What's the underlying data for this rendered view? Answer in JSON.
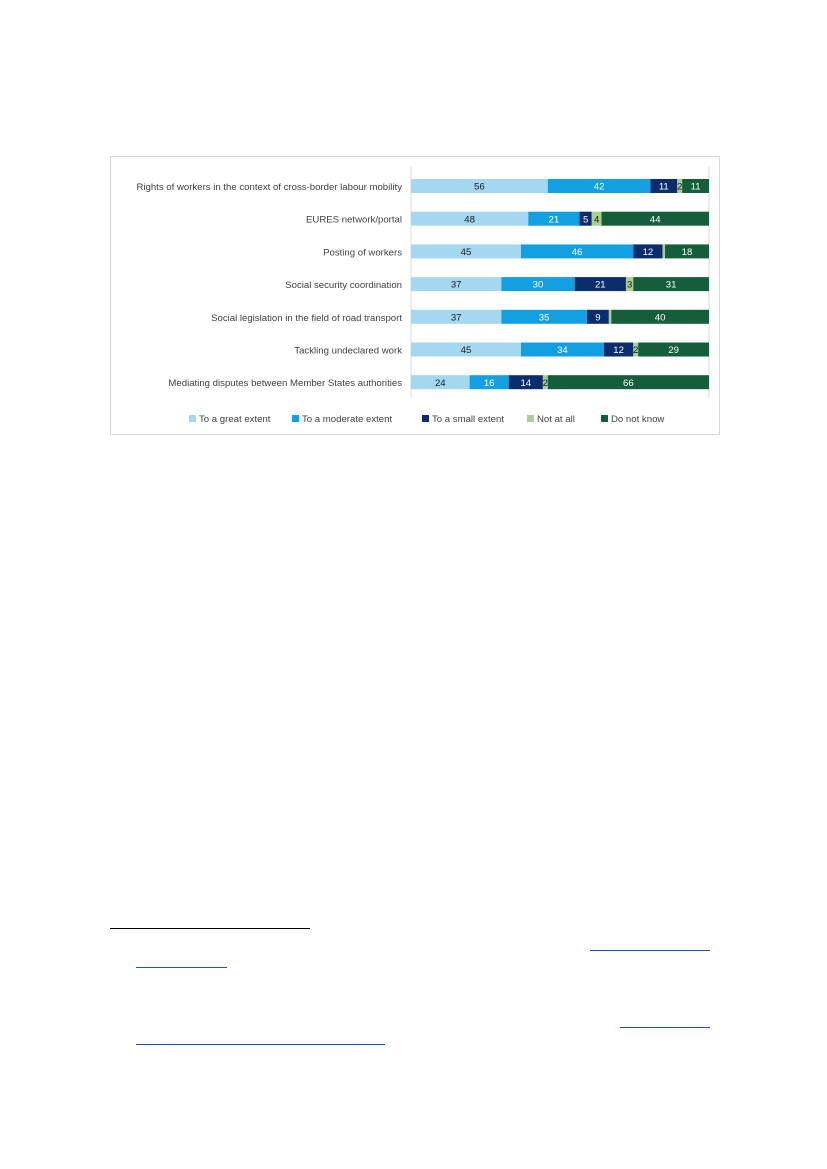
{
  "chart_data": {
    "type": "bar",
    "orientation": "horizontal",
    "stacked": true,
    "categories": [
      "Rights of workers in the context of cross-border labour mobility",
      "EURES network/portal",
      "Posting of workers",
      "Social security coordination",
      "Social legislation in the field of road transport",
      "Tackling undeclared work",
      "Mediating disputes between Member States authorities"
    ],
    "series": [
      {
        "name": "To a great extent",
        "color": "#a3d8f0",
        "label_color": "#1a1a1a",
        "values": [
          56,
          48,
          45,
          37,
          37,
          45,
          24
        ],
        "labels": [
          "56",
          "48",
          "45",
          "37",
          "37",
          "45",
          "24"
        ]
      },
      {
        "name": "To a moderate extent",
        "color": "#13a0e2",
        "label_color": "#ffffff",
        "values": [
          42,
          21,
          46,
          30,
          35,
          34,
          16
        ],
        "labels": [
          "42",
          "21",
          "46",
          "30",
          "35",
          "34",
          "16"
        ]
      },
      {
        "name": "To a small extent",
        "color": "#0c2d6b",
        "label_color": "#ffffff",
        "values": [
          11,
          5,
          12,
          21,
          9,
          12,
          14
        ],
        "labels": [
          "11",
          "5",
          "12",
          "21",
          "9",
          "12",
          "14"
        ]
      },
      {
        "name": "Not at all",
        "color": "#a9d08e",
        "label_color": "#1a1a1a",
        "values": [
          2,
          4,
          1,
          3,
          1,
          2,
          2
        ],
        "labels": [
          "2",
          "4",
          "",
          "3",
          "",
          "2",
          "2"
        ]
      },
      {
        "name": "Do not know",
        "color": "#155e3c",
        "label_color": "#ffffff",
        "values": [
          11,
          44,
          18,
          31,
          40,
          29,
          66
        ],
        "labels": [
          "11",
          "44",
          "18",
          "31",
          "40",
          "29",
          "66"
        ]
      }
    ],
    "xlim": [
      0,
      122
    ],
    "legend_position": "bottom",
    "grid": false,
    "title": "",
    "xlabel": "",
    "ylabel": ""
  }
}
